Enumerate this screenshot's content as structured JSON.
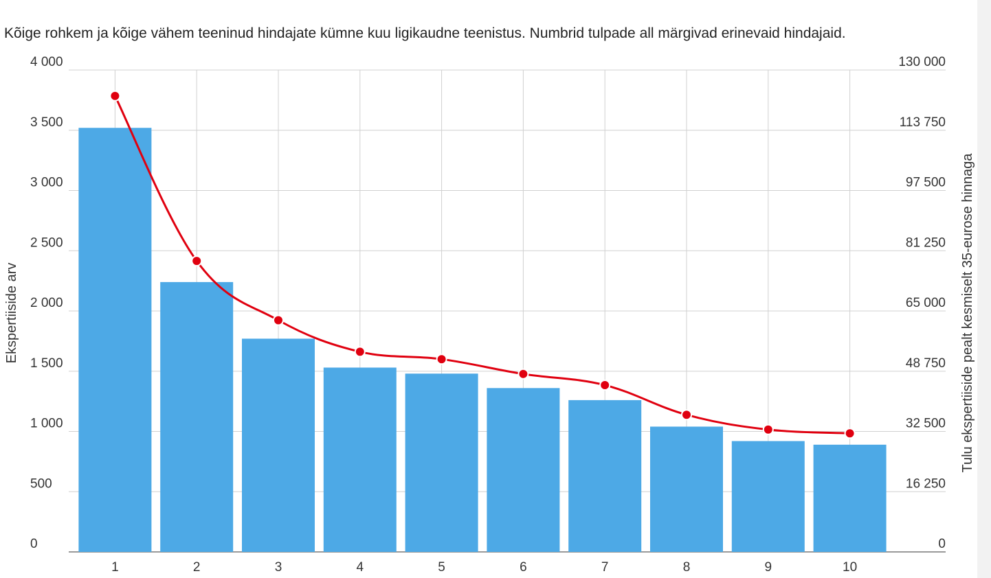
{
  "chart_data": {
    "type": "bar",
    "title": "Kõige rohkem ja kõige vähem teeninud hindajate kümne kuu ligikaudne teenistus.  Numbrid tulpade all märgivad erinevaid hindajaid.",
    "categories": [
      "1",
      "2",
      "3",
      "4",
      "5",
      "6",
      "7",
      "8",
      "9",
      "10"
    ],
    "ylabel": "Ekspertiiside arv",
    "y2label": "Tulu ekspertiiside pealt kesmiselt 35-eurose hinnaga",
    "ylim": [
      0,
      4000
    ],
    "y2lim": [
      0,
      130000
    ],
    "yticks": [
      "0",
      "500",
      "1 000",
      "1 500",
      "2 000",
      "2 500",
      "3 000",
      "3 500",
      "4 000"
    ],
    "y2ticks": [
      "0",
      "16 250",
      "32 500",
      "48 750",
      "65 000",
      "81 250",
      "97 500",
      "113 750",
      "130 000"
    ],
    "grid": true,
    "series": [
      {
        "type": "bar",
        "axis": "left",
        "color": "#4DA9E6",
        "values": [
          3520,
          2240,
          1770,
          1530,
          1480,
          1360,
          1260,
          1040,
          920,
          890
        ]
      },
      {
        "type": "line",
        "axis": "right",
        "color": "#E0000F",
        "values": [
          123000,
          78500,
          62500,
          54000,
          52000,
          48000,
          45000,
          37000,
          33000,
          32000
        ]
      }
    ]
  }
}
